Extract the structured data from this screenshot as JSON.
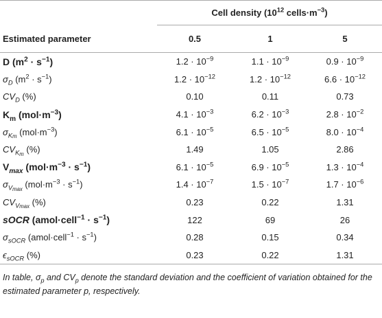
{
  "table": {
    "header": {
      "group": [
        "Cell density (10",
        {
          "sup": "12"
        },
        " cells·m",
        {
          "sup": "−3"
        },
        ")"
      ],
      "param": "Estimated parameter",
      "columns": [
        "0.5",
        "1",
        "5"
      ]
    },
    "rows": [
      {
        "label": [
          "D (m",
          {
            "sup": "2"
          },
          " · s",
          {
            "sup": "−1"
          },
          ")"
        ],
        "values": [
          [
            "1.2 · 10",
            {
              "sup": "−9"
            }
          ],
          [
            "1.1 · 10",
            {
              "sup": "−9"
            }
          ],
          [
            "0.9 · 10",
            {
              "sup": "−9"
            }
          ]
        ]
      },
      {
        "label": [
          {
            "i": "σ"
          },
          {
            "isub": "D"
          },
          " (m",
          {
            "sup": "2"
          },
          " · s",
          {
            "sup": "−1"
          },
          ")"
        ],
        "values": [
          [
            "1.2 · 10",
            {
              "sup": "−12"
            }
          ],
          [
            "1.2 · 10",
            {
              "sup": "−12"
            }
          ],
          [
            "6.6 · 10",
            {
              "sup": "−12"
            }
          ]
        ]
      },
      {
        "label": [
          {
            "i": "CV"
          },
          {
            "isub": "D"
          },
          " (%)"
        ],
        "values": [
          "0.10",
          "0.11",
          "0.73"
        ]
      },
      {
        "label": [
          "K",
          {
            "sub": "m"
          },
          " (mol·m",
          {
            "sup": "−3"
          },
          ")"
        ],
        "values": [
          [
            "4.1 · 10",
            {
              "sup": "−3"
            }
          ],
          [
            "6.2 · 10",
            {
              "sup": "−3"
            }
          ],
          [
            "2.8 · 10",
            {
              "sup": "−2"
            }
          ]
        ]
      },
      {
        "label": [
          {
            "i": "σ"
          },
          {
            "isub": "K"
          },
          {
            "isub2": "m"
          },
          " (mol·m",
          {
            "sup": "−3"
          },
          ")"
        ],
        "values": [
          [
            "6.1 · 10",
            {
              "sup": "−5"
            }
          ],
          [
            "6.5 · 10",
            {
              "sup": "−5"
            }
          ],
          [
            "8.0 · 10",
            {
              "sup": "−4"
            }
          ]
        ]
      },
      {
        "label": [
          {
            "i": "CV"
          },
          {
            "isub": "K"
          },
          {
            "isub2": "m"
          },
          " (%)"
        ],
        "values": [
          "1.49",
          "1.05",
          "2.86"
        ]
      },
      {
        "label": [
          "V",
          {
            "isub": "max"
          },
          " (mol·m",
          {
            "sup": "−3"
          },
          " · s",
          {
            "sup": "−1"
          },
          ")"
        ],
        "values": [
          [
            "6.1 · 10",
            {
              "sup": "−5"
            }
          ],
          [
            "6.9 · 10",
            {
              "sup": "−5"
            }
          ],
          [
            "1.3 · 10",
            {
              "sup": "−4"
            }
          ]
        ]
      },
      {
        "label": [
          {
            "i": "σ"
          },
          {
            "isub": "V"
          },
          {
            "isub2": "max"
          },
          " (mol·m",
          {
            "sup": "−3"
          },
          " · s",
          {
            "sup": "−1"
          },
          ")"
        ],
        "values": [
          [
            "1.4 · 10",
            {
              "sup": "−7"
            }
          ],
          [
            "1.5 · 10",
            {
              "sup": "−7"
            }
          ],
          [
            "1.7 · 10",
            {
              "sup": "−6"
            }
          ]
        ]
      },
      {
        "label": [
          {
            "i": "CV"
          },
          {
            "isub": "V"
          },
          {
            "isub2": "max"
          },
          " (%)"
        ],
        "values": [
          "0.23",
          "0.22",
          "1.31"
        ]
      },
      {
        "label": [
          {
            "i": "sOCR"
          },
          " (amol·cell",
          {
            "sup": "−1"
          },
          " · s",
          {
            "sup": "−1"
          },
          ")"
        ],
        "values": [
          "122",
          "69",
          "26"
        ]
      },
      {
        "label": [
          {
            "i": "σ"
          },
          {
            "isub": "sOCR"
          },
          " (amol·cell",
          {
            "sup": "−1"
          },
          " · s",
          {
            "sup": "−1"
          },
          ")"
        ],
        "values": [
          "0.28",
          "0.15",
          "0.34"
        ]
      },
      {
        "label": [
          {
            "i": "ϵ"
          },
          {
            "isub": "sOCR"
          },
          " (%)"
        ],
        "values": [
          "0.23",
          "0.22",
          "1.31"
        ]
      }
    ],
    "footnote": [
      "In table, σ",
      {
        "sub": "p"
      },
      " and CV",
      {
        "sub": "p"
      },
      " denote the standard deviation and the coefficient of variation obtained for the estimated parameter p, respectively."
    ]
  }
}
